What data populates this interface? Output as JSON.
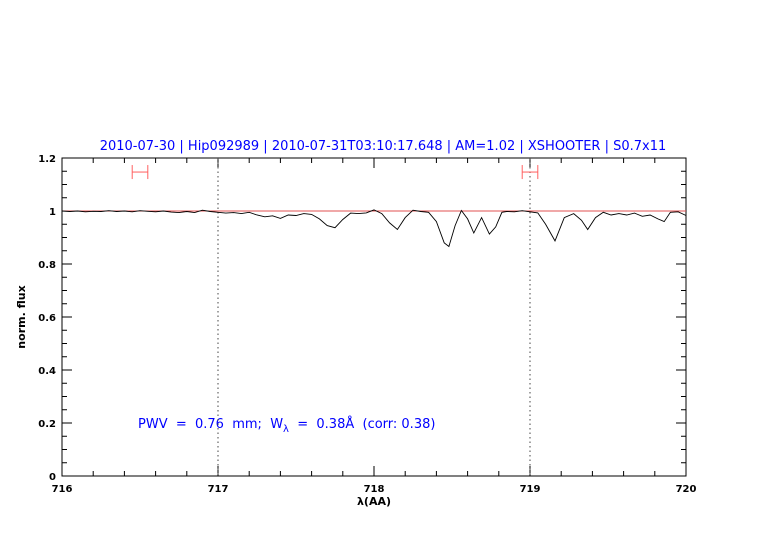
{
  "chart_data": {
    "type": "line",
    "title": "2010-07-30 | Hip092989 | 2010-07-31T03:10:17.648 | AM=1.02 | XSHOOTER | S0.7x11",
    "xlabel": "λ(AA)",
    "ylabel": "norm. flux",
    "xlim": [
      716,
      720
    ],
    "ylim": [
      0,
      1.2
    ],
    "x_ticks": [
      716,
      717,
      718,
      719,
      720
    ],
    "x_tick_labels": [
      "716",
      "717",
      "718",
      "719",
      "720"
    ],
    "y_ticks": [
      0,
      0.2,
      0.4,
      0.6,
      0.8,
      1,
      1.2
    ],
    "y_tick_labels": [
      "0",
      "0.2",
      "0.4",
      "0.6",
      "0.8",
      "1",
      "1.2"
    ],
    "grid": false,
    "annotation": {
      "prefix": "PWV  =  0.76  mm;  W",
      "sub": "λ",
      "suffix": "  =  0.38Å  (corr: 0.38)"
    },
    "reference_line": {
      "y": 1.0,
      "color": "#e05050"
    },
    "vertical_dotted_lines": [
      717,
      719
    ],
    "error_bars": [
      {
        "x_min": 716.45,
        "x_max": 716.55,
        "y": 1.147
      },
      {
        "x_min": 718.95,
        "x_max": 719.05,
        "y": 1.147
      }
    ],
    "colors": {
      "title": "#0000ff",
      "annotation": "#0000ff",
      "spectrum": "#000000",
      "error_bars": "#ff6060"
    },
    "series": [
      {
        "x": [
          716.0,
          716.05,
          716.1,
          716.15,
          716.2,
          716.25,
          716.3,
          716.35,
          716.4,
          716.45,
          716.5,
          716.55,
          716.6,
          716.65,
          716.7,
          716.75,
          716.8,
          716.85,
          716.9,
          716.95,
          717.0,
          717.05,
          717.1,
          717.15,
          717.2,
          717.25,
          717.3,
          717.35,
          717.4,
          717.45,
          717.5,
          717.55,
          717.6,
          717.65,
          717.7,
          717.75,
          717.8,
          717.85,
          717.9,
          717.95,
          718.0,
          718.05,
          718.1,
          718.15,
          718.2,
          718.25,
          718.3,
          718.35,
          718.4,
          718.45,
          718.48,
          718.52,
          718.56,
          718.6,
          718.64,
          718.69,
          718.74,
          718.78,
          718.82,
          718.85,
          718.9,
          718.95,
          719.0,
          719.05,
          719.1,
          719.16,
          719.22,
          719.28,
          719.33,
          719.37,
          719.42,
          719.47,
          719.52,
          719.57,
          719.62,
          719.67,
          719.72,
          719.77,
          719.82,
          719.86,
          719.9,
          719.95,
          720.0
        ],
        "y": [
          1.0,
          0.998,
          1.0,
          0.997,
          0.999,
          0.998,
          1.001,
          0.998,
          1.0,
          0.997,
          1.001,
          0.999,
          0.997,
          1.0,
          0.996,
          0.994,
          0.998,
          0.994,
          1.003,
          0.998,
          0.995,
          0.992,
          0.994,
          0.99,
          0.995,
          0.985,
          0.978,
          0.982,
          0.972,
          0.985,
          0.983,
          0.99,
          0.987,
          0.97,
          0.945,
          0.937,
          0.968,
          0.992,
          0.99,
          0.993,
          1.004,
          0.99,
          0.955,
          0.93,
          0.975,
          1.003,
          0.998,
          0.995,
          0.96,
          0.88,
          0.866,
          0.945,
          1.002,
          0.97,
          0.917,
          0.975,
          0.913,
          0.94,
          0.995,
          0.998,
          0.997,
          1.001,
          0.997,
          0.993,
          0.95,
          0.887,
          0.975,
          0.99,
          0.965,
          0.93,
          0.975,
          0.995,
          0.985,
          0.99,
          0.985,
          0.992,
          0.98,
          0.985,
          0.97,
          0.96,
          0.995,
          0.997,
          0.983
        ]
      }
    ]
  }
}
